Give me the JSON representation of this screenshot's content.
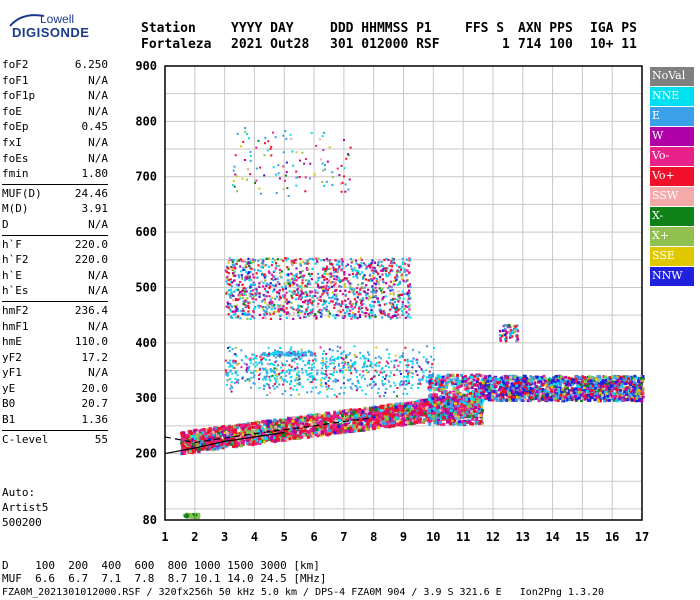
{
  "logo": {
    "line1": "Lowell",
    "line2": "DIGISONDE"
  },
  "header": {
    "row1": [
      "Station",
      "YYYY DAY",
      "DDD HHMMSS P1",
      "FFS S",
      "AXN PPS",
      "IGA PS"
    ],
    "row2": [
      "Fortaleza",
      "2021 Out28",
      "301 012000 RSF",
      "1",
      "714 100",
      "10+ 11"
    ]
  },
  "params": {
    "group1": [
      {
        "k": "foF2",
        "v": "6.250"
      },
      {
        "k": "foF1",
        "v": "N/A"
      },
      {
        "k": "foF1p",
        "v": "N/A"
      },
      {
        "k": "foE",
        "v": "N/A"
      },
      {
        "k": "foEp",
        "v": "0.45"
      },
      {
        "k": "fxI",
        "v": "N/A"
      },
      {
        "k": "foEs",
        "v": "N/A"
      },
      {
        "k": "fmin",
        "v": "1.80"
      }
    ],
    "group2": [
      {
        "k": "MUF(D)",
        "v": "24.46"
      },
      {
        "k": "M(D)",
        "v": "3.91"
      },
      {
        "k": "D",
        "v": "N/A"
      }
    ],
    "group3": [
      {
        "k": "h`F",
        "v": "220.0"
      },
      {
        "k": "h`F2",
        "v": "220.0"
      },
      {
        "k": "h`E",
        "v": "N/A"
      },
      {
        "k": "h`Es",
        "v": "N/A"
      }
    ],
    "group4": [
      {
        "k": "hmF2",
        "v": "236.4"
      },
      {
        "k": "hmF1",
        "v": "N/A"
      },
      {
        "k": "hmE",
        "v": "110.0"
      },
      {
        "k": "yF2",
        "v": "17.2"
      },
      {
        "k": "yF1",
        "v": "N/A"
      },
      {
        "k": "yE",
        "v": "20.0"
      },
      {
        "k": "B0",
        "v": "20.7"
      },
      {
        "k": "B1",
        "v": "1.36"
      }
    ],
    "group5": [
      {
        "k": "C-level",
        "v": "55"
      }
    ]
  },
  "auto": {
    "line1": "Auto:",
    "line2": "Artist5",
    "line3": "500200"
  },
  "legend": [
    {
      "label": "NoVal",
      "color": "#808080"
    },
    {
      "label": "NNE",
      "color": "#00e0f0"
    },
    {
      "label": "E",
      "color": "#3aa0e8"
    },
    {
      "label": "W",
      "color": "#b000a8"
    },
    {
      "label": "Vo-",
      "color": "#e8208a"
    },
    {
      "label": "Vo+",
      "color": "#f0102a"
    },
    {
      "label": "SSW",
      "color": "#f4aaaa"
    },
    {
      "label": "X-",
      "color": "#108018"
    },
    {
      "label": "X+",
      "color": "#90c050"
    },
    {
      "label": "SSE",
      "color": "#e0c800"
    },
    {
      "label": "NNW",
      "color": "#2020e0"
    }
  ],
  "footer": {
    "d_row": "D    100  200  400  600  800 1000 1500 3000 [km]",
    "muf_row": "MUF  6.6  6.7  7.1  7.8  8.7 10.1 14.0 24.5 [MHz]",
    "file_row": "FZA0M_2021301012000.RSF / 320fx256h 50 kHz 5.0 km / DPS-4 FZA0M 904 / 3.9 S 321.6 E   Ion2Png 1.3.20"
  },
  "chart_data": {
    "type": "scatter",
    "title": "",
    "xlabel": "",
    "ylabel": "",
    "xlim": [
      1,
      17
    ],
    "ylim": [
      80,
      900
    ],
    "x_ticks": [
      1,
      2,
      3,
      4,
      5,
      6,
      7,
      8,
      9,
      10,
      11,
      12,
      13,
      14,
      15,
      16,
      17
    ],
    "y_ticks": [
      80,
      200,
      300,
      400,
      500,
      600,
      700,
      800,
      900
    ],
    "grid": true,
    "description_of_traces": {
      "o_trace_F2": {
        "freq_range": [
          1.5,
          11.6
        ],
        "height_range": [
          220,
          310
        ]
      },
      "second_hop": {
        "freq_range": [
          3,
          9
        ],
        "height_range": [
          440,
          560
        ]
      },
      "spread_F": {
        "freq_range": [
          11.5,
          17
        ],
        "height_range": [
          290,
          340
        ]
      },
      "low_echo": {
        "freq": [
          1.6,
          2.1
        ],
        "height": 90
      }
    },
    "profile_curves": [
      {
        "name": "",
        "points": [
          [
            1,
            230
          ],
          [
            2,
            220
          ],
          [
            3,
            228
          ],
          [
            4,
            236
          ],
          [
            5,
            243
          ],
          [
            6,
            250
          ],
          [
            7,
            258
          ],
          [
            8,
            265
          ]
        ]
      },
      {
        "name": "",
        "points": [
          [
            1,
            200
          ],
          [
            2,
            210
          ],
          [
            3,
            222
          ],
          [
            4,
            230
          ],
          [
            5,
            238
          ]
        ]
      }
    ]
  }
}
